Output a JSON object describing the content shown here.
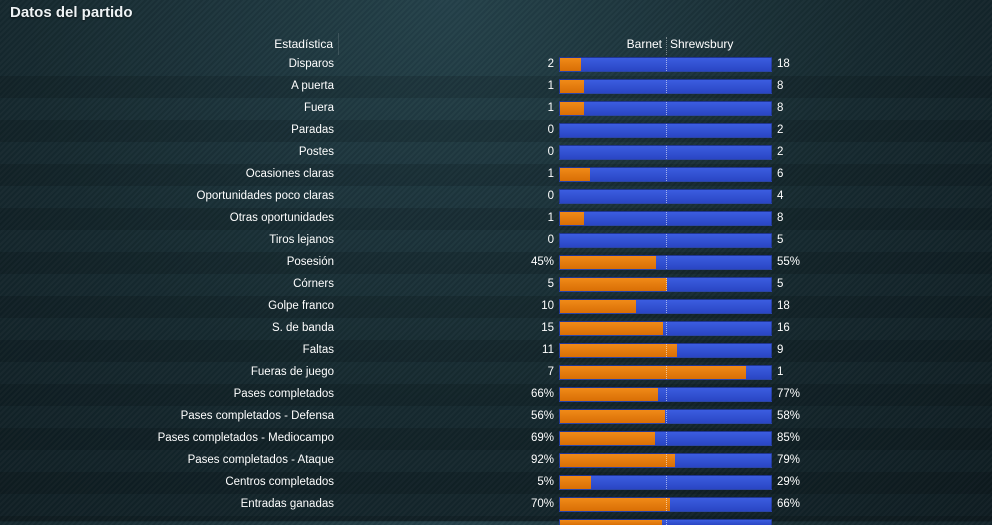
{
  "title": "Datos del partido",
  "header": {
    "stat": "Estadística",
    "home": "Barnet",
    "away": "Shrewsbury"
  },
  "colors": {
    "home": "#e47a0c",
    "away": "#3050d6"
  },
  "rows": [
    {
      "label": "Disparos",
      "home": "2",
      "away": "18",
      "home_share": 0.1
    },
    {
      "label": "A puerta",
      "home": "1",
      "away": "8",
      "home_share": 0.111
    },
    {
      "label": "Fuera",
      "home": "1",
      "away": "8",
      "home_share": 0.111
    },
    {
      "label": "Paradas",
      "home": "0",
      "away": "2",
      "home_share": 0
    },
    {
      "label": "Postes",
      "home": "0",
      "away": "2",
      "home_share": 0
    },
    {
      "label": "Ocasiones claras",
      "home": "1",
      "away": "6",
      "home_share": 0.143
    },
    {
      "label": "Oportunidades poco claras",
      "home": "0",
      "away": "4",
      "home_share": 0
    },
    {
      "label": "Otras oportunidades",
      "home": "1",
      "away": "8",
      "home_share": 0.111
    },
    {
      "label": "Tiros lejanos",
      "home": "0",
      "away": "5",
      "home_share": 0
    },
    {
      "label": "Posesión",
      "home": "45%",
      "away": "55%",
      "home_share": 0.45
    },
    {
      "label": "Córners",
      "home": "5",
      "away": "5",
      "home_share": 0.5
    },
    {
      "label": "Golpe franco",
      "home": "10",
      "away": "18",
      "home_share": 0.357
    },
    {
      "label": "S. de banda",
      "home": "15",
      "away": "16",
      "home_share": 0.484
    },
    {
      "label": "Faltas",
      "home": "11",
      "away": "9",
      "home_share": 0.55
    },
    {
      "label": "Fueras de juego",
      "home": "7",
      "away": "1",
      "home_share": 0.875
    },
    {
      "label": "Pases completados",
      "home": "66%",
      "away": "77%",
      "home_share": 0.462
    },
    {
      "label": "Pases completados - Defensa",
      "home": "56%",
      "away": "58%",
      "home_share": 0.491
    },
    {
      "label": "Pases completados - Mediocampo",
      "home": "69%",
      "away": "85%",
      "home_share": 0.448
    },
    {
      "label": "Pases completados - Ataque",
      "home": "92%",
      "away": "79%",
      "home_share": 0.538
    },
    {
      "label": "Centros completados",
      "home": "5%",
      "away": "29%",
      "home_share": 0.147
    },
    {
      "label": "Entradas ganadas",
      "home": "70%",
      "away": "66%",
      "home_share": 0.515
    }
  ],
  "partial_row": {
    "home_share": 0.48
  }
}
